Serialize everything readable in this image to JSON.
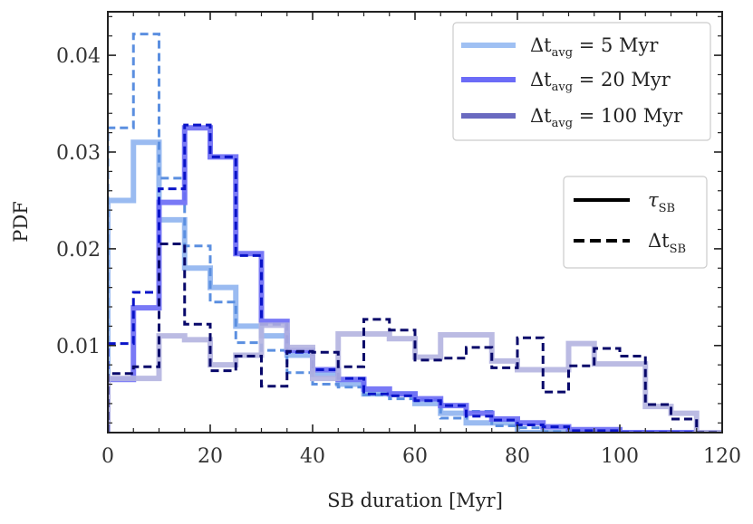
{
  "chart_data": {
    "type": "histogram-step",
    "title": "",
    "xlabel": "SB duration [Myr]",
    "ylabel": "PDF",
    "xlim": [
      0,
      120
    ],
    "ylim": [
      0.001,
      0.0445
    ],
    "xticks": [
      "0",
      "20",
      "40",
      "60",
      "80",
      "100",
      "120"
    ],
    "yticks": [
      "0.01",
      "0.02",
      "0.03",
      "0.04"
    ],
    "bin_edges": [
      0,
      5,
      10,
      15,
      20,
      25,
      30,
      35,
      40,
      45,
      50,
      55,
      60,
      65,
      70,
      75,
      80,
      85,
      90,
      95,
      100,
      105,
      110,
      115,
      120
    ],
    "series": [
      {
        "name": "Δt_avg = 5 Myr",
        "quantity": "τ_SB",
        "style": "solid",
        "color": "#8fb4ef",
        "values": [
          0.025,
          0.031,
          0.023,
          0.018,
          0.016,
          0.012,
          0.011,
          0.009,
          0.007,
          0.006,
          0.005,
          0.005,
          0.004,
          0.003,
          0.002,
          0.002,
          0.001,
          0.001,
          0.001,
          0.001,
          0.001,
          0.001,
          0.001,
          0.001
        ]
      },
      {
        "name": "Δt_avg = 5 Myr",
        "quantity": "Δt_SB",
        "style": "dashed",
        "color": "#5b8fe0",
        "values": [
          0.0325,
          0.0422,
          0.0273,
          0.0203,
          0.0145,
          0.0103,
          0.0095,
          0.0072,
          0.006,
          0.0057,
          0.0049,
          0.0045,
          0.0044,
          0.0025,
          0.0032,
          0.0017,
          0.0015,
          0.0011,
          0.0011,
          0.001,
          0.001,
          0.001,
          0.001,
          0.001
        ]
      },
      {
        "name": "Δt_avg = 20 Myr",
        "quantity": "τ_SB",
        "style": "solid",
        "color": "#6a6af5",
        "values": [
          0.0065,
          0.0139,
          0.0248,
          0.0325,
          0.0295,
          0.0195,
          0.0125,
          0.0095,
          0.0075,
          0.0065,
          0.0055,
          0.005,
          0.0045,
          0.0038,
          0.003,
          0.0024,
          0.002,
          0.0016,
          0.0013,
          0.0013,
          0.001,
          0.001,
          0.001,
          0.001
        ]
      },
      {
        "name": "Δt_avg = 20 Myr",
        "quantity": "Δt_SB",
        "style": "dashed",
        "color": "#0a14c8",
        "values": [
          0.0102,
          0.0155,
          0.0262,
          0.0328,
          0.0295,
          0.0193,
          0.0122,
          0.0093,
          0.0075,
          0.0066,
          0.005,
          0.0048,
          0.0043,
          0.0038,
          0.0027,
          0.0023,
          0.0018,
          0.0016,
          0.0012,
          0.0012,
          0.001,
          0.001,
          0.001,
          0.001
        ]
      },
      {
        "name": "Δt_avg = 100 Myr",
        "quantity": "τ_SB",
        "style": "solid",
        "color": "#b4b4e0",
        "values": [
          0.0066,
          0.0066,
          0.011,
          0.0106,
          0.008,
          0.009,
          0.0121,
          0.0098,
          0.0066,
          0.0112,
          0.0112,
          0.0107,
          0.0088,
          0.0111,
          0.0111,
          0.0084,
          0.0075,
          0.0075,
          0.0102,
          0.0081,
          0.0081,
          0.0037,
          0.003,
          0.001
        ]
      },
      {
        "name": "Δt_avg = 100 Myr",
        "quantity": "Δt_SB",
        "style": "dashed",
        "color": "#08086a",
        "values": [
          0.0071,
          0.0078,
          0.0205,
          0.0122,
          0.0074,
          0.0089,
          0.0058,
          0.0094,
          0.0093,
          0.0078,
          0.0127,
          0.0116,
          0.0085,
          0.0087,
          0.0098,
          0.0077,
          0.0108,
          0.0052,
          0.0079,
          0.0097,
          0.0089,
          0.0039,
          0.0024,
          0.001
        ]
      }
    ],
    "legend_color": {
      "placement": "top-right",
      "entries": [
        {
          "label": "Δt",
          "sub": "avg",
          "suffix": " = 5 Myr",
          "color": "#9fc0f3"
        },
        {
          "label": "Δt",
          "sub": "avg",
          "suffix": " = 20 Myr",
          "color": "#6b6bf7"
        },
        {
          "label": "Δt",
          "sub": "avg",
          "suffix": " = 100 Myr",
          "color": "#6a6ac0"
        }
      ]
    },
    "legend_style": {
      "placement": "right",
      "entries": [
        {
          "label": "τ",
          "sub": "SB",
          "style": "solid",
          "color": "#000000"
        },
        {
          "label": "Δt",
          "sub": "SB",
          "style": "dashed",
          "color": "#000000"
        }
      ]
    },
    "grid": false
  }
}
